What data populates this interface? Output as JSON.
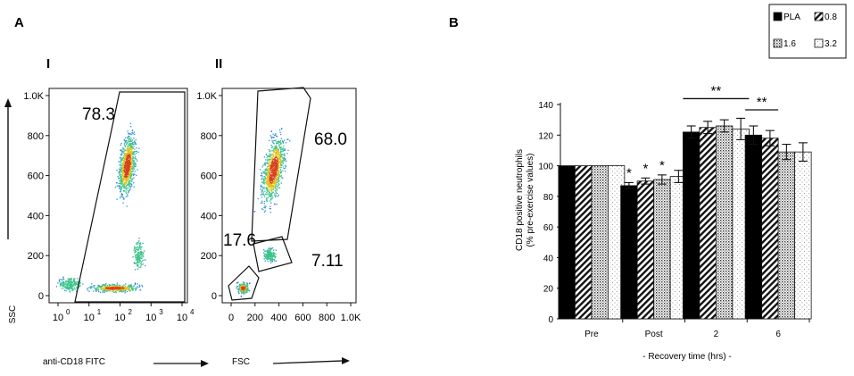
{
  "colors": {
    "axis": "#111111",
    "heat": [
      "#1b2fbf",
      "#2f8fd6",
      "#3cc48a",
      "#e3c21a",
      "#d6421f"
    ]
  },
  "panel_a": {
    "letter": "A",
    "flow_plots": [
      {
        "roman": "I",
        "x_ticks": [
          "10",
          "10",
          "10",
          "10",
          "10"
        ],
        "x_tick_exponents": [
          "0",
          "1",
          "2",
          "3",
          "4"
        ],
        "y_ticks": [
          "0",
          "200",
          "400",
          "600",
          "800",
          "1.0K"
        ],
        "gates": [
          {
            "label": "78.3"
          }
        ],
        "x_axis_label": "anti-CD18 FITC"
      },
      {
        "roman": "II",
        "x_ticks": [
          "0",
          "200",
          "400",
          "600",
          "800",
          "1.0K"
        ],
        "y_ticks": [
          "0",
          "200",
          "400",
          "600",
          "800",
          "1.0K"
        ],
        "gates": [
          {
            "label": "68.0"
          },
          {
            "label": "17.6"
          },
          {
            "label": "7.11"
          }
        ],
        "x_axis_label": "FSC"
      }
    ],
    "y_axis_label": "SSC"
  },
  "chart_data": {
    "type": "bar",
    "panel": "B",
    "ylabel_line1": "CD18 positive neutrophils",
    "ylabel_line2": "(% pre-exercise values)",
    "xlabel": "- Recovery time (hrs) -",
    "ylim": [
      0,
      140
    ],
    "yticks": [
      0,
      20,
      40,
      60,
      80,
      100,
      120,
      140
    ],
    "categories": [
      "Pre",
      "Post",
      "2",
      "6"
    ],
    "series": [
      {
        "name": "PLA",
        "pattern": "solid",
        "values": [
          100,
          87,
          122,
          120
        ],
        "errors": [
          0,
          2,
          4,
          6
        ]
      },
      {
        "name": "0.8",
        "pattern": "stripe",
        "values": [
          100,
          90,
          125,
          118
        ],
        "errors": [
          0,
          2,
          4,
          5
        ]
      },
      {
        "name": "1.6",
        "pattern": "dots",
        "values": [
          100,
          91,
          126,
          109
        ],
        "errors": [
          0,
          3,
          4,
          5
        ]
      },
      {
        "name": "3.2",
        "pattern": "fine",
        "values": [
          100,
          93,
          124,
          109
        ],
        "errors": [
          0,
          4,
          7,
          6
        ]
      }
    ],
    "annotations": [
      {
        "text": "*",
        "category": "Post",
        "series": "PLA"
      },
      {
        "text": "*",
        "category": "Post",
        "series": "0.8"
      },
      {
        "text": "*",
        "category": "Post",
        "series": "1.6"
      },
      {
        "text": "**",
        "category": "2",
        "span": "all"
      },
      {
        "text": "**",
        "category": "6",
        "span": "PLA-0.8"
      }
    ],
    "legend": {
      "position": "top-right",
      "entries": [
        "PLA",
        "0.8",
        "1.6",
        "3.2"
      ]
    }
  }
}
